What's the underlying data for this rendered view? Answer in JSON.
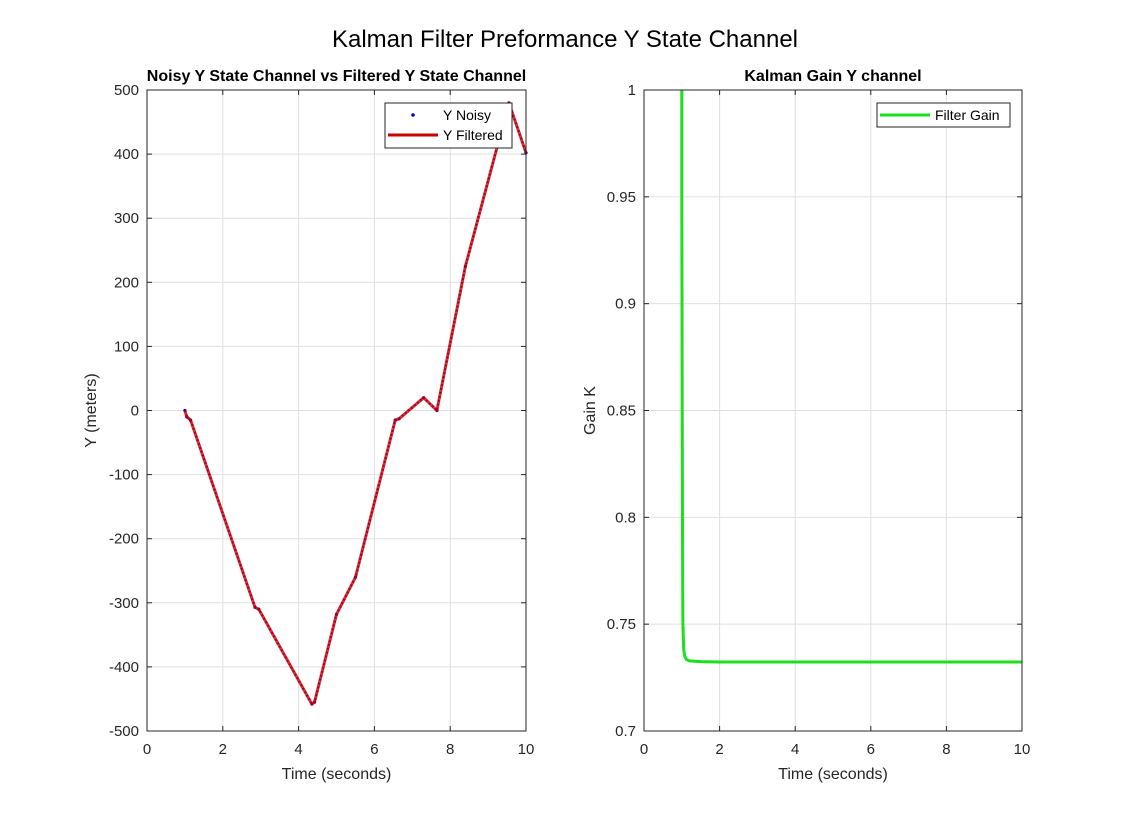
{
  "figure_title": "Kalman Filter Preformance Y State Channel",
  "chart_data": [
    {
      "type": "line",
      "title": "Noisy Y State Channel vs Filtered Y State Channel",
      "xlabel": "Time (seconds)",
      "ylabel": "Y (meters)",
      "xlim": [
        0,
        10
      ],
      "ylim": [
        -500,
        500
      ],
      "xticks": [
        0,
        2,
        4,
        6,
        8,
        10
      ],
      "yticks": [
        -500,
        -400,
        -300,
        -200,
        -100,
        0,
        100,
        200,
        300,
        400,
        500
      ],
      "grid": true,
      "legend": "top-right",
      "series": [
        {
          "name": "Y Noisy",
          "style": "dots",
          "color": "#0000cc",
          "x": [
            1.0,
            1.05,
            1.15,
            2.85,
            2.95,
            4.35,
            4.42,
            5.0,
            5.5,
            6.55,
            6.65,
            7.3,
            7.65,
            8.4,
            9.55,
            10.0
          ],
          "y": [
            0,
            -10,
            -15,
            -307,
            -310,
            -458,
            -455,
            -318,
            -260,
            -15,
            -13,
            20,
            0,
            225,
            480,
            402
          ]
        },
        {
          "name": "Y Filtered",
          "style": "line",
          "color": "#cc0000",
          "x": [
            1.0,
            1.05,
            1.15,
            2.85,
            2.95,
            4.35,
            4.42,
            5.0,
            5.5,
            6.55,
            6.65,
            7.3,
            7.65,
            8.4,
            9.55,
            10.0
          ],
          "y": [
            0,
            -10,
            -15,
            -307,
            -310,
            -458,
            -455,
            -318,
            -260,
            -15,
            -13,
            20,
            0,
            225,
            480,
            402
          ]
        }
      ]
    },
    {
      "type": "line",
      "title": "Kalman Gain Y channel",
      "xlabel": "Time (seconds)",
      "ylabel": "Gain K",
      "xlim": [
        0,
        10
      ],
      "ylim": [
        0.7,
        1
      ],
      "xticks": [
        0,
        2,
        4,
        6,
        8,
        10
      ],
      "yticks": [
        0.7,
        0.75,
        0.8,
        0.85,
        0.9,
        0.95,
        1
      ],
      "grid": true,
      "legend": "top-right",
      "series": [
        {
          "name": "Filter Gain",
          "style": "line",
          "color": "#1be01b",
          "x": [
            1.0,
            1.0,
            1.01,
            1.02,
            1.03,
            1.05,
            1.08,
            1.12,
            1.2,
            1.5,
            2.0,
            10.0
          ],
          "y": [
            1.0,
            0.95,
            0.85,
            0.78,
            0.75,
            0.738,
            0.735,
            0.7335,
            0.7328,
            0.7325,
            0.7323,
            0.7323
          ]
        }
      ]
    }
  ]
}
